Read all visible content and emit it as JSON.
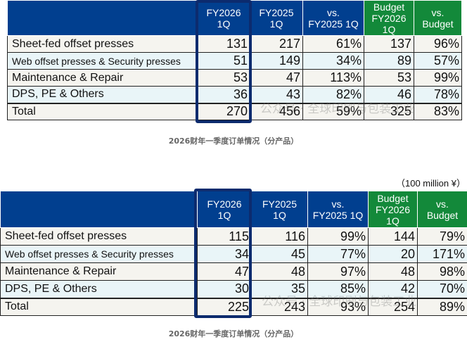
{
  "headers": [
    "",
    "FY2026\n1Q",
    "FY2025\n1Q",
    "vs.\nFY2025 1Q",
    "Budget\nFY2026\n1Q",
    "vs.\nBudget"
  ],
  "tables": [
    {
      "rows": [
        {
          "label": "Sheet-fed offset presses",
          "values": [
            "131",
            "217",
            "61%",
            "137",
            "96%"
          ]
        },
        {
          "label": "Web offset presses & Security presses",
          "values": [
            "51",
            "149",
            "34%",
            "89",
            "57%"
          ]
        },
        {
          "label": "Maintenance & Repair",
          "values": [
            "53",
            "47",
            "113%",
            "53",
            "99%"
          ]
        },
        {
          "label": "DPS, PE & Others",
          "values": [
            "36",
            "43",
            "82%",
            "46",
            "78%"
          ]
        },
        {
          "label": "Total",
          "values": [
            "270",
            "456",
            "59%",
            "325",
            "83%"
          ]
        }
      ],
      "caption": "2026财年一季度订单情况（分产品）",
      "watermark": "公众号 · 全球印刷与包装工业"
    },
    {
      "unit": "（100 million ¥）",
      "rows": [
        {
          "label": "Sheet-fed offset presses",
          "values": [
            "115",
            "116",
            "99%",
            "144",
            "79%"
          ]
        },
        {
          "label": "Web offset presses & Security presses",
          "values": [
            "34",
            "45",
            "77%",
            "20",
            "171%"
          ]
        },
        {
          "label": "Maintenance & Repair",
          "values": [
            "47",
            "48",
            "97%",
            "48",
            "98%"
          ]
        },
        {
          "label": "DPS, PE & Others",
          "values": [
            "30",
            "35",
            "85%",
            "42",
            "70%"
          ]
        },
        {
          "label": "Total",
          "values": [
            "225",
            "243",
            "93%",
            "254",
            "89%"
          ]
        }
      ],
      "caption": "2026财年一季度订单情况（分产品）",
      "watermark": "公众号 · 全球印刷与包装工业"
    }
  ],
  "colors": {
    "header_blue": "#013f8f",
    "header_green": "#13893a",
    "highlight": "#0c2b6e"
  }
}
